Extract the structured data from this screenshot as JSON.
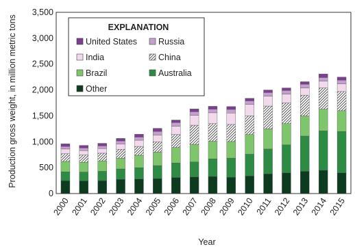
{
  "chart_data": {
    "type": "bar",
    "stacked": true,
    "categories": [
      "2000",
      "2001",
      "2002",
      "2003",
      "2004",
      "2005",
      "2006",
      "2007",
      "2008",
      "2009",
      "2010",
      "2011",
      "2012",
      "2013",
      "2014",
      "2015"
    ],
    "series": [
      {
        "name": "Other",
        "color": "#0d3b1f",
        "values": [
          250,
          245,
          250,
          275,
          280,
          290,
          310,
          320,
          330,
          315,
          340,
          380,
          400,
          430,
          450,
          400
        ]
      },
      {
        "name": "Australia",
        "color": "#2e8b44",
        "values": [
          170,
          170,
          180,
          200,
          220,
          250,
          280,
          290,
          340,
          370,
          420,
          480,
          540,
          680,
          760,
          800
        ]
      },
      {
        "name": "Brazil",
        "color": "#7fc56b",
        "values": [
          200,
          190,
          200,
          210,
          240,
          260,
          300,
          340,
          340,
          320,
          380,
          390,
          410,
          390,
          420,
          400
        ]
      },
      {
        "name": "China",
        "color": "#ffffff",
        "pattern": "hatch",
        "values": [
          150,
          140,
          150,
          170,
          170,
          200,
          250,
          370,
          340,
          330,
          360,
          440,
          400,
          400,
          410,
          370
        ]
      },
      {
        "name": "India",
        "color": "#f2d9ec",
        "values": [
          90,
          85,
          90,
          100,
          120,
          130,
          160,
          190,
          210,
          220,
          220,
          190,
          170,
          140,
          130,
          150
        ]
      },
      {
        "name": "Russia",
        "color": "#c4a0cf",
        "values": [
          50,
          50,
          50,
          60,
          60,
          70,
          70,
          70,
          70,
          70,
          70,
          70,
          70,
          70,
          70,
          70
        ]
      },
      {
        "name": "United States",
        "color": "#7b3f8f",
        "values": [
          50,
          50,
          50,
          50,
          55,
          60,
          50,
          55,
          55,
          55,
          50,
          50,
          50,
          50,
          70,
          60
        ]
      }
    ],
    "xlabel": "Year",
    "ylabel": "Production gross weight, in million metric tons",
    "ylim": [
      0,
      3500
    ],
    "yticks": [
      "0",
      "500",
      "1,000",
      "1,500",
      "2,000",
      "2,500",
      "3,000",
      "3,500"
    ],
    "legend": {
      "title": "EXPLANATION",
      "position": "top-left",
      "order": [
        "United States",
        "Russia",
        "India",
        "China",
        "Brazil",
        "Australia",
        "Other"
      ]
    },
    "grid": false
  }
}
